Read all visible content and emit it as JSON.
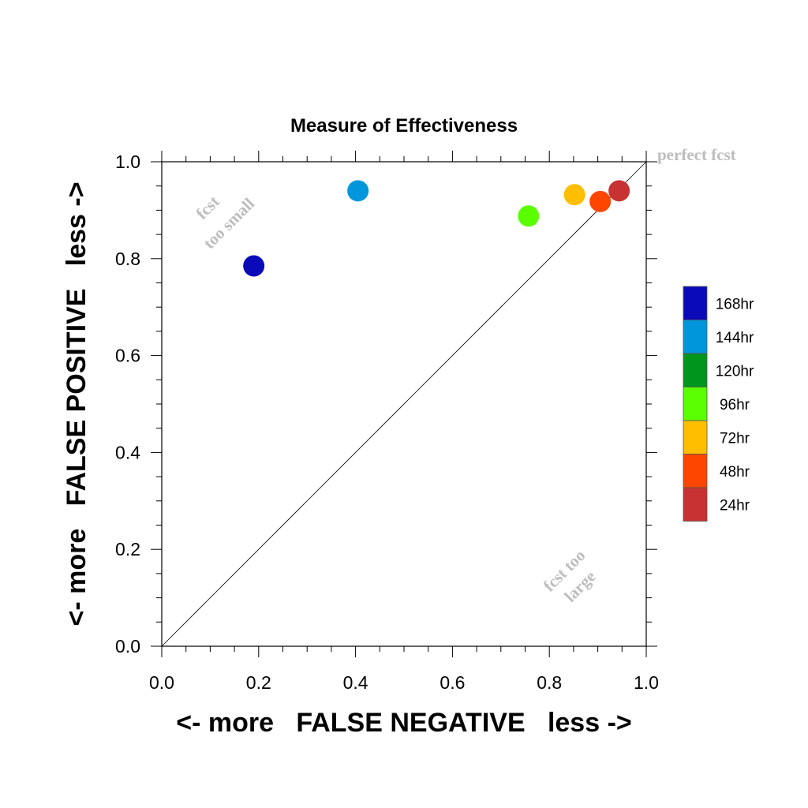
{
  "chart_data": {
    "type": "scatter",
    "title": "Measure of Effectiveness",
    "xlabel": "<- more   FALSE NEGATIVE   less ->",
    "ylabel": "<- more   FALSE POSITIVE   less ->",
    "xlim": [
      0.0,
      1.0
    ],
    "ylim": [
      0.0,
      1.0
    ],
    "xticks": [
      "0.0",
      "0.2",
      "0.4",
      "0.6",
      "0.8",
      "1.0"
    ],
    "yticks": [
      "0.0",
      "0.2",
      "0.4",
      "0.6",
      "0.8",
      "1.0"
    ],
    "grid": false,
    "diagonal_line": true,
    "annotations": {
      "top_right": "perfect fcst",
      "upper_left": [
        "fcst",
        "too small"
      ],
      "lower_right": [
        "fcst too",
        "large"
      ]
    },
    "legend_position": "right",
    "legend": [
      {
        "label": "168hr",
        "color": "#0a0ab9"
      },
      {
        "label": "144hr",
        "color": "#0096dc"
      },
      {
        "label": "120hr",
        "color": "#00961e"
      },
      {
        "label": "96hr",
        "color": "#5aff00"
      },
      {
        "label": "72hr",
        "color": "#ffbe00"
      },
      {
        "label": "48hr",
        "color": "#ff4600"
      },
      {
        "label": "24hr",
        "color": "#c83232"
      }
    ],
    "series": [
      {
        "name": "168hr",
        "color": "#0a0ab9",
        "x": 0.19,
        "y": 0.785
      },
      {
        "name": "144hr",
        "color": "#0096dc",
        "x": 0.405,
        "y": 0.94
      },
      {
        "name": "96hr",
        "color": "#5aff00",
        "x": 0.757,
        "y": 0.888
      },
      {
        "name": "72hr",
        "color": "#ffbe00",
        "x": 0.852,
        "y": 0.932
      },
      {
        "name": "48hr",
        "color": "#ff4600",
        "x": 0.905,
        "y": 0.918
      },
      {
        "name": "24hr",
        "color": "#c83232",
        "x": 0.944,
        "y": 0.94
      }
    ]
  }
}
